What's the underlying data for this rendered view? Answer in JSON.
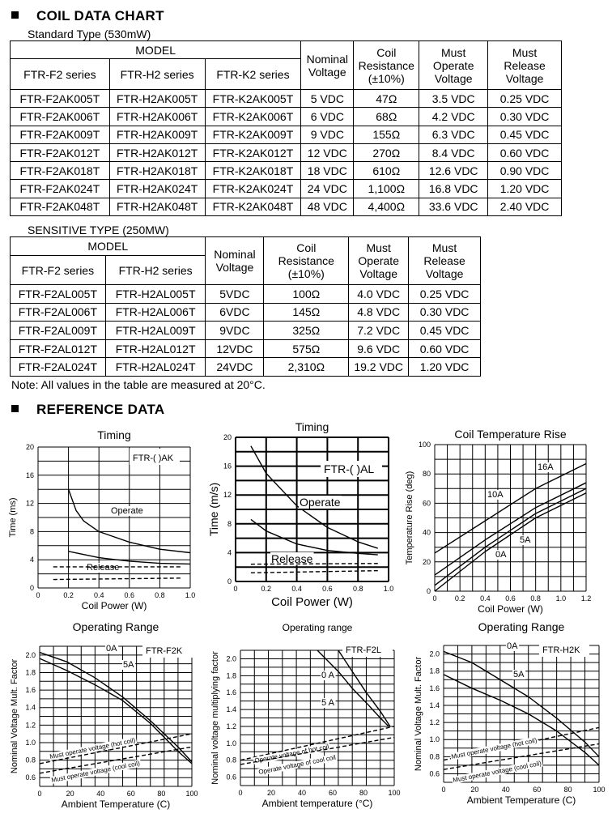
{
  "coil_section": {
    "title": "COIL DATA CHART"
  },
  "standard": {
    "subtitle": "Standard Type (530mW)",
    "headers": {
      "model": "MODEL",
      "series": [
        "FTR-F2 series",
        "FTR-H2 series",
        "FTR-K2 series"
      ],
      "nominal": [
        "Nominal",
        "Voltage"
      ],
      "resistance": [
        "Coil",
        "Resistance",
        "(±10%)"
      ],
      "operate": [
        "Must",
        "Operate",
        "Voltage"
      ],
      "release": [
        "Must",
        "Release",
        "Voltage"
      ]
    },
    "rows": [
      [
        "FTR-F2AK005T",
        "FTR-H2AK005T",
        "FTR-K2AK005T",
        "5 VDC",
        "47Ω",
        "3.5 VDC",
        "0.25 VDC"
      ],
      [
        "FTR-F2AK006T",
        "FTR-H2AK006T",
        "FTR-K2AK006T",
        "6 VDC",
        "68Ω",
        "4.2 VDC",
        "0.30 VDC"
      ],
      [
        "FTR-F2AK009T",
        "FTR-H2AK009T",
        "FTR-K2AK009T",
        "9 VDC",
        "155Ω",
        "6.3 VDC",
        "0.45 VDC"
      ],
      [
        "FTR-F2AK012T",
        "FTR-H2AK012T",
        "FTR-K2AK012T",
        "12 VDC",
        "270Ω",
        "8.4 VDC",
        "0.60 VDC"
      ],
      [
        "FTR-F2AK018T",
        "FTR-H2AK018T",
        "FTR-K2AK018T",
        "18 VDC",
        "610Ω",
        "12.6 VDC",
        "0.90 VDC"
      ],
      [
        "FTR-F2AK024T",
        "FTR-H2AK024T",
        "FTR-K2AK024T",
        "24 VDC",
        "1,100Ω",
        "16.8 VDC",
        "1.20 VDC"
      ],
      [
        "FTR-F2AK048T",
        "FTR-H2AK048T",
        "FTR-K2AK048T",
        "48 VDC",
        "4,400Ω",
        "33.6 VDC",
        "2.40 VDC"
      ]
    ]
  },
  "sensitive": {
    "subtitle": "SENSITIVE TYPE (250MW)",
    "headers": {
      "model": "MODEL",
      "series": [
        "FTR-F2 series",
        "FTR-H2 series"
      ],
      "nominal": [
        "Nominal",
        "Voltage"
      ],
      "resistance": [
        "Coil",
        "Resistance",
        "(±10%)"
      ],
      "operate": [
        "Must",
        "Operate",
        "Voltage"
      ],
      "release": [
        "Must",
        "Release",
        "Voltage"
      ]
    },
    "rows": [
      [
        "FTR-F2AL005T",
        "FTR-H2AL005T",
        "5VDC",
        "100Ω",
        "4.0 VDC",
        "0.25 VDC"
      ],
      [
        "FTR-F2AL006T",
        "FTR-H2AL006T",
        "6VDC",
        "145Ω",
        "4.8 VDC",
        "0.30 VDC"
      ],
      [
        "FTR-F2AL009T",
        "FTR-H2AL009T",
        "9VDC",
        "325Ω",
        "7.2 VDC",
        "0.45 VDC"
      ],
      [
        "FTR-F2AL012T",
        "FTR-H2AL012T",
        "12VDC",
        "575Ω",
        "9.6 VDC",
        "0.60 VDC"
      ],
      [
        "FTR-F2AL024T",
        "FTR-H2AL024T",
        "24VDC",
        "2,310Ω",
        "19.2 VDC",
        "1.20 VDC"
      ]
    ]
  },
  "note": "Note:  All values in the table are measured at 20°C.",
  "reference_section": {
    "title": "REFERENCE DATA"
  },
  "chart_data": [
    {
      "type": "line",
      "title": "Timing",
      "xlabel": "Coil Power (W)",
      "ylabel": "Time (ms)",
      "xlim": [
        0,
        1
      ],
      "ylim": [
        0,
        20
      ],
      "xticks": [
        "0",
        "0.2",
        "0.4",
        "0.6",
        "0.8",
        "1.0"
      ],
      "yticks": [
        "0",
        "4",
        "8",
        "12",
        "16",
        "20"
      ],
      "grid": true,
      "inset": "FTR-( )AK",
      "series": [
        {
          "name": "Operate",
          "style": "solid",
          "points": [
            [
              0.2,
              14
            ],
            [
              0.25,
              11
            ],
            [
              0.3,
              9.5
            ],
            [
              0.4,
              8
            ],
            [
              0.6,
              6.5
            ],
            [
              0.8,
              5.5
            ],
            [
              1.0,
              5
            ]
          ]
        },
        {
          "name": "Release",
          "style": "solid",
          "points": [
            [
              0.2,
              5.2
            ],
            [
              0.4,
              4.3
            ],
            [
              0.6,
              3.8
            ],
            [
              0.8,
              3.5
            ],
            [
              1.0,
              3.4
            ]
          ]
        },
        {
          "style": "dashed",
          "points": [
            [
              0.1,
              3
            ],
            [
              0.95,
              3
            ]
          ]
        },
        {
          "style": "dashed",
          "points": [
            [
              0.1,
              1.2
            ],
            [
              0.95,
              1.4
            ]
          ]
        }
      ]
    },
    {
      "type": "line",
      "title": "Timing",
      "xlabel": "Coil Power (W)",
      "ylabel": "Time (m/s)",
      "xlim": [
        0,
        1
      ],
      "ylim": [
        0,
        20
      ],
      "xticks": [
        "0",
        "0.2",
        "0.4",
        "0.6",
        "0.8",
        "1.0"
      ],
      "yticks": [
        "0",
        "4",
        "8",
        "12",
        "16",
        "20"
      ],
      "grid": true,
      "inset": "FTR-( )AL",
      "series": [
        {
          "name": "Operate",
          "style": "solid",
          "points": [
            [
              0.1,
              18.8
            ],
            [
              0.2,
              15
            ],
            [
              0.4,
              10.5
            ],
            [
              0.6,
              7.5
            ],
            [
              0.8,
              5.5
            ],
            [
              0.93,
              4.6
            ]
          ]
        },
        {
          "name": "Release",
          "style": "solid",
          "points": [
            [
              0.1,
              8.6
            ],
            [
              0.2,
              7
            ],
            [
              0.4,
              5.2
            ],
            [
              0.6,
              4.3
            ],
            [
              0.8,
              3.9
            ],
            [
              0.93,
              3.7
            ]
          ]
        },
        {
          "style": "dashed",
          "points": [
            [
              0.1,
              2.4
            ],
            [
              0.93,
              2.5
            ]
          ]
        },
        {
          "style": "dashed",
          "points": [
            [
              0.1,
              1.2
            ],
            [
              0.93,
              1.5
            ]
          ]
        }
      ]
    },
    {
      "type": "line",
      "title": "Coil Temperature Rise",
      "xlabel": "Coil Power (W)",
      "ylabel": "Temperature Rise (deg)",
      "xlim": [
        0,
        1.2
      ],
      "ylim": [
        0,
        100
      ],
      "xticks": [
        "0",
        "0.2",
        "0.4",
        "0.6",
        "0.8",
        "1.0",
        "1.2"
      ],
      "yticks": [
        "0",
        "20",
        "40",
        "60",
        "80",
        "100"
      ],
      "grid": true,
      "series": [
        {
          "name": "16A",
          "style": "solid",
          "points": [
            [
              0,
              26
            ],
            [
              0.4,
              48
            ],
            [
              0.8,
              70
            ],
            [
              1.2,
              87
            ]
          ]
        },
        {
          "name": "10A",
          "style": "solid",
          "points": [
            [
              0,
              11
            ],
            [
              0.4,
              35
            ],
            [
              0.8,
              57
            ],
            [
              1.2,
              74
            ]
          ]
        },
        {
          "name": "5A",
          "style": "solid",
          "points": [
            [
              0,
              4
            ],
            [
              0.4,
              30
            ],
            [
              0.8,
              53
            ],
            [
              1.2,
              70
            ]
          ]
        },
        {
          "name": "0A",
          "style": "solid",
          "points": [
            [
              0,
              0
            ],
            [
              0.4,
              27
            ],
            [
              0.8,
              50
            ],
            [
              1.2,
              67
            ]
          ]
        }
      ]
    },
    {
      "type": "line",
      "title": "Operating Range",
      "xlabel": "Ambient Temperature (C)",
      "ylabel": "Nominal Voltage Mult. Factor",
      "xlim": [
        0,
        110
      ],
      "ylim": [
        0.5,
        2.1
      ],
      "xticks": [
        "0",
        "20",
        "40",
        "60",
        "80",
        "100"
      ],
      "yticks": [
        "0.6",
        "0.8",
        "1.0",
        "1.2",
        "1.4",
        "1.6",
        "1.8",
        "2.0"
      ],
      "grid": true,
      "inset": "FTR-F2K",
      "series": [
        {
          "name": "0A",
          "style": "solid",
          "points": [
            [
              0,
              2.03
            ],
            [
              20,
              1.92
            ],
            [
              40,
              1.74
            ],
            [
              60,
              1.52
            ],
            [
              80,
              1.25
            ],
            [
              100,
              0.95
            ],
            [
              110,
              0.78
            ]
          ]
        },
        {
          "name": "5A",
          "style": "solid",
          "points": [
            [
              0,
              1.96
            ],
            [
              20,
              1.82
            ],
            [
              40,
              1.66
            ],
            [
              60,
              1.48
            ],
            [
              80,
              1.22
            ],
            [
              100,
              0.9
            ],
            [
              110,
              0.76
            ]
          ]
        },
        {
          "name": "Must operate voltage (hot coil)",
          "style": "dashed",
          "points": [
            [
              0,
              0.76
            ],
            [
              110,
              1.1
            ]
          ]
        },
        {
          "name": "Must operate voltage (cool coil)",
          "style": "dashed",
          "points": [
            [
              0,
              0.65
            ],
            [
              110,
              0.95
            ]
          ]
        }
      ]
    },
    {
      "type": "line",
      "title": "Operating range",
      "xlabel": "Ambient temperature (°C)",
      "ylabel": "Nominal voltage multiplying factor",
      "xlim": [
        0,
        110
      ],
      "ylim": [
        0.5,
        2.1
      ],
      "xticks": [
        "0",
        "20",
        "40",
        "60",
        "80",
        "100"
      ],
      "yticks": [
        "0.6",
        "0.8",
        "1.0",
        "1.2",
        "1.4",
        "1.6",
        "1.8",
        "2.0"
      ],
      "grid": true,
      "inset": "FTR-F2L",
      "series": [
        {
          "name": "0 A",
          "style": "solid",
          "points": [
            [
              70,
              2.1
            ],
            [
              80,
              1.85
            ],
            [
              90,
              1.6
            ],
            [
              100,
              1.38
            ],
            [
              107,
              1.2
            ]
          ]
        },
        {
          "name": "5 A",
          "style": "solid",
          "points": [
            [
              55,
              2.1
            ],
            [
              70,
              1.85
            ],
            [
              80,
              1.65
            ],
            [
              90,
              1.48
            ],
            [
              100,
              1.3
            ],
            [
              106,
              1.2
            ]
          ]
        },
        {
          "name": "Operate voltage of hot coil",
          "style": "dashed",
          "points": [
            [
              0,
              0.8
            ],
            [
              110,
              1.2
            ]
          ]
        },
        {
          "name": "Operate voltage of cool coil",
          "style": "dashed",
          "points": [
            [
              0,
              0.75
            ],
            [
              110,
              1.07
            ]
          ]
        }
      ]
    },
    {
      "type": "line",
      "title": "Operating Range",
      "xlabel": "Ambient Temperature (C)",
      "ylabel": "Nominal Voltage Mult. Factor",
      "xlim": [
        0,
        110
      ],
      "ylim": [
        0.5,
        2.1
      ],
      "xticks": [
        "0",
        "20",
        "40",
        "60",
        "80",
        "100"
      ],
      "yticks": [
        "0.6",
        "0.8",
        "1.0",
        "1.2",
        "1.4",
        "1.6",
        "1.8",
        "2.0"
      ],
      "grid": true,
      "inset": "FTR-H2K",
      "series": [
        {
          "name": "0A",
          "style": "solid",
          "points": [
            [
              0,
              2.03
            ],
            [
              20,
              1.9
            ],
            [
              40,
              1.7
            ],
            [
              60,
              1.5
            ],
            [
              80,
              1.25
            ],
            [
              100,
              0.97
            ],
            [
              110,
              0.8
            ]
          ]
        },
        {
          "name": "5A",
          "style": "solid",
          "points": [
            [
              0,
              1.76
            ],
            [
              20,
              1.6
            ],
            [
              40,
              1.46
            ],
            [
              60,
              1.3
            ],
            [
              80,
              1.1
            ],
            [
              100,
              0.85
            ],
            [
              110,
              0.7
            ]
          ]
        },
        {
          "name": "Must operate voltage (hot coil)",
          "style": "dashed",
          "points": [
            [
              0,
              0.76
            ],
            [
              110,
              1.14
            ]
          ]
        },
        {
          "name": "Must operate voltage (cool coil)",
          "style": "dashed",
          "points": [
            [
              0,
              0.65
            ],
            [
              110,
              0.95
            ]
          ]
        }
      ]
    }
  ]
}
